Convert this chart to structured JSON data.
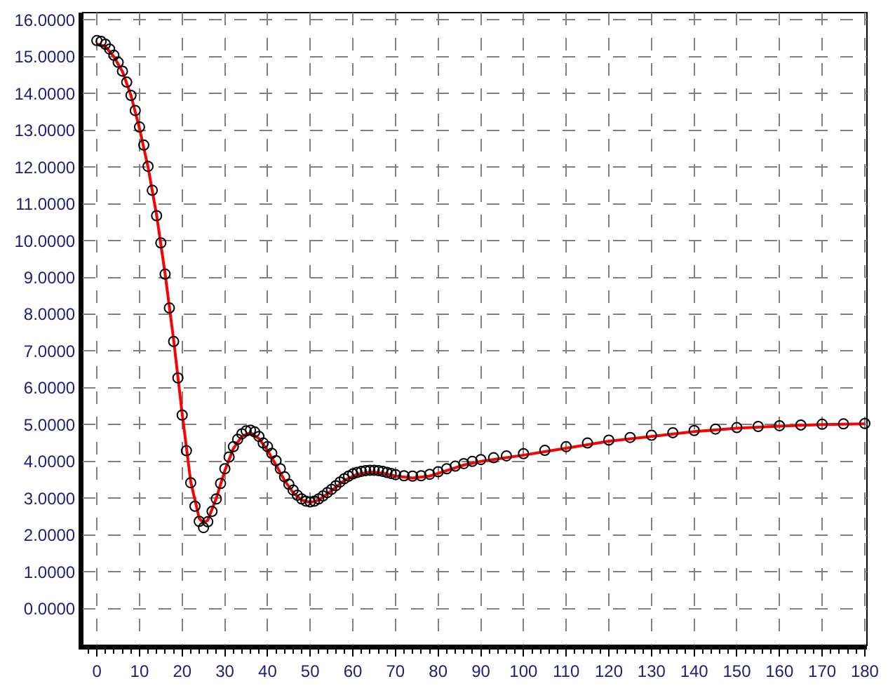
{
  "chart_data": {
    "type": "scatter",
    "xlim": [
      -3.3,
      180.5
    ],
    "ylim": [
      -1,
      16.2
    ],
    "xticks": [
      0,
      10,
      20,
      30,
      40,
      50,
      60,
      70,
      80,
      90,
      100,
      110,
      120,
      130,
      140,
      150,
      160,
      170,
      180
    ],
    "yticks": [
      {
        "value": 0,
        "label": "0.0000"
      },
      {
        "value": 1,
        "label": "1.0000"
      },
      {
        "value": 2,
        "label": "2.0000"
      },
      {
        "value": 3,
        "label": "3.0000"
      },
      {
        "value": 4,
        "label": "4.0000"
      },
      {
        "value": 5,
        "label": "5.0000"
      },
      {
        "value": 6,
        "label": "6.0000"
      },
      {
        "value": 7,
        "label": "7.0000"
      },
      {
        "value": 8,
        "label": "8.0000"
      },
      {
        "value": 9,
        "label": "9.0000"
      },
      {
        "value": 10,
        "label": "10.0000"
      },
      {
        "value": 11,
        "label": "11.0000"
      },
      {
        "value": 12,
        "label": "12.0000"
      },
      {
        "value": 13,
        "label": "13.0000"
      },
      {
        "value": 14,
        "label": "14.0000"
      },
      {
        "value": 15,
        "label": "15.0000"
      },
      {
        "value": 16,
        "label": "16.0000"
      }
    ],
    "grid": true,
    "marker": "circle",
    "series": [
      {
        "color": "#000000",
        "x": [
          0,
          1,
          2,
          3,
          4,
          5,
          6,
          7,
          8,
          9,
          10,
          11,
          12,
          13,
          14,
          15,
          16,
          17,
          18,
          19,
          20,
          21,
          22,
          23,
          24,
          25,
          26,
          27,
          28,
          29,
          30,
          31,
          32,
          33,
          34,
          35,
          36,
          37,
          38,
          39,
          40,
          41,
          42,
          43,
          44,
          45,
          46,
          47,
          48,
          49,
          50,
          51,
          52,
          53,
          54,
          55,
          56,
          57,
          58,
          59,
          60,
          61,
          62,
          63,
          64,
          65,
          66,
          67,
          68,
          69,
          70,
          72,
          74,
          76,
          78,
          80,
          82,
          84,
          86,
          88,
          90,
          93,
          96,
          100,
          105,
          110,
          115,
          120,
          125,
          130,
          135,
          140,
          145,
          150,
          155,
          160,
          165,
          170,
          175,
          180
        ],
        "values": [
          15.44,
          15.42,
          15.34,
          15.21,
          15.04,
          14.85,
          14.61,
          14.31,
          13.95,
          13.54,
          13.09,
          12.6,
          12.02,
          11.37,
          10.68,
          9.94,
          9.09,
          8.17,
          7.26,
          6.27,
          5.26,
          4.29,
          3.42,
          2.78,
          2.37,
          2.2,
          2.36,
          2.64,
          2.98,
          3.4,
          3.8,
          4.12,
          4.4,
          4.6,
          4.75,
          4.83,
          4.85,
          4.8,
          4.68,
          4.5,
          4.4,
          4.22,
          4.02,
          3.8,
          3.58,
          3.38,
          3.22,
          3.08,
          2.98,
          2.92,
          2.9,
          2.92,
          2.98,
          3.06,
          3.15,
          3.24,
          3.34,
          3.44,
          3.53,
          3.6,
          3.66,
          3.7,
          3.73,
          3.75,
          3.76,
          3.76,
          3.75,
          3.73,
          3.7,
          3.67,
          3.64,
          3.61,
          3.6,
          3.61,
          3.65,
          3.72,
          3.8,
          3.87,
          3.94,
          4.0,
          4.05,
          4.1,
          4.15,
          4.21,
          4.3,
          4.4,
          4.5,
          4.58,
          4.65,
          4.71,
          4.78,
          4.84,
          4.88,
          4.92,
          4.95,
          4.97,
          4.99,
          5.01,
          5.02,
          5.03
        ]
      },
      {
        "type": "line",
        "color": "#ff0000",
        "marker": "none",
        "line_style": "solid",
        "x": [
          0,
          2,
          4,
          6,
          8,
          10,
          12,
          14,
          16,
          18,
          20,
          22,
          24,
          25,
          26,
          28,
          30,
          32,
          34,
          36,
          38,
          40,
          42,
          44,
          46,
          48,
          50,
          52,
          55,
          58,
          61,
          64,
          67,
          70,
          74,
          78,
          82,
          86,
          90,
          100,
          110,
          120,
          130,
          140,
          150,
          160,
          170,
          180
        ],
        "values": [
          15.35,
          15.28,
          15.0,
          14.6,
          13.95,
          13.05,
          12.0,
          10.7,
          9.1,
          7.3,
          5.3,
          3.45,
          2.45,
          2.33,
          2.4,
          3.0,
          3.75,
          4.35,
          4.68,
          4.78,
          4.62,
          4.3,
          3.9,
          3.48,
          3.15,
          2.95,
          2.88,
          2.95,
          3.2,
          3.48,
          3.65,
          3.71,
          3.68,
          3.6,
          3.55,
          3.6,
          3.75,
          3.9,
          4.0,
          4.17,
          4.36,
          4.55,
          4.68,
          4.81,
          4.9,
          4.96,
          5.0,
          5.02
        ]
      }
    ]
  }
}
